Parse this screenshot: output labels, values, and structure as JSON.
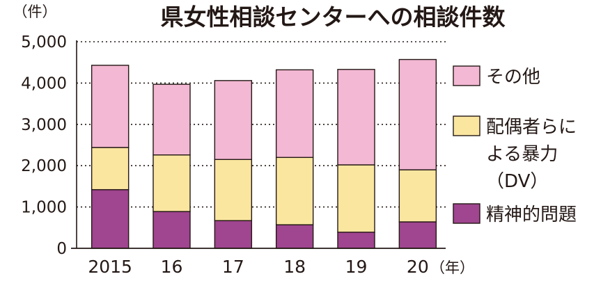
{
  "chart_data": {
    "type": "bar",
    "stacked": true,
    "title": "県女性相談センターへの相談件数",
    "unit_y": "（件）",
    "unit_x": "（年）",
    "categories": [
      "2015",
      "16",
      "17",
      "18",
      "19",
      "20"
    ],
    "ylim": [
      0,
      5000
    ],
    "yticks": [
      "5,000",
      "4,000",
      "3,000",
      "2,000",
      "1,000",
      "0"
    ],
    "ytick_values": [
      5000,
      4000,
      3000,
      2000,
      1000,
      0
    ],
    "grid": true,
    "legend_position": "right",
    "series": [
      {
        "name": "精神的問題",
        "color": "#a0458f",
        "values": [
          1420,
          890,
          670,
          570,
          390,
          640
        ]
      },
      {
        "name": "配偶者らによる暴力（DV）",
        "color": "#fbe6a0",
        "values": [
          1020,
          1370,
          1480,
          1630,
          1630,
          1260
        ]
      },
      {
        "name": "その他",
        "color": "#f3b8d3",
        "values": [
          1990,
          1710,
          1910,
          2120,
          2310,
          2670
        ]
      }
    ],
    "legend_lines": [
      [
        "その他"
      ],
      [
        "配偶者らに",
        "よる暴力",
        "（DV）"
      ],
      [
        "精神的問題"
      ]
    ]
  }
}
